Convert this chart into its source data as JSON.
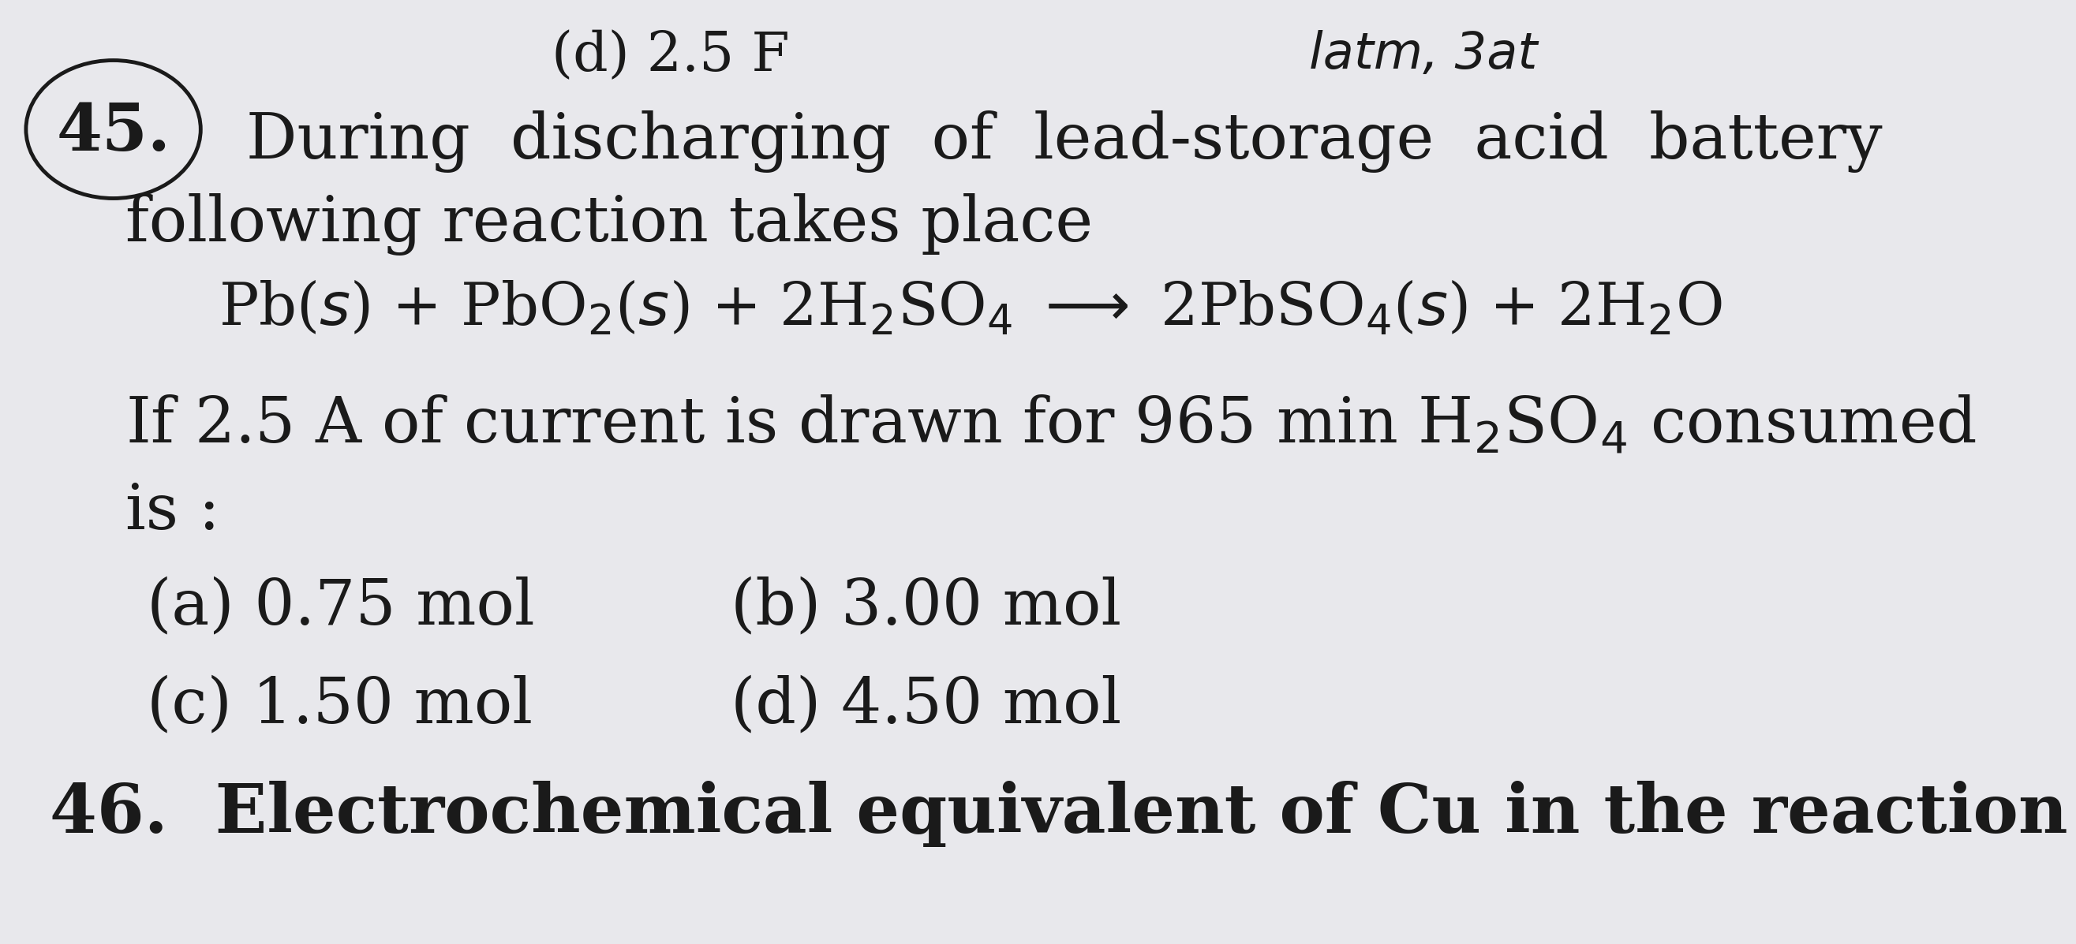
{
  "bg_color": "#e8e8ec",
  "text_color": "#1a1a1a",
  "fig_width": 25.82,
  "fig_height": 11.78,
  "circle_number": "45.",
  "top_partial": "(d) 2.5 F",
  "top_right": "latm, 3at",
  "line1": "During  discharging  of  lead-storage  acid  battery",
  "line2": "following reaction takes place",
  "line3_if": "If 2.5 A of current is drawn for 965 min H$_2$SO$_4$ consumed",
  "line4": "is :",
  "opt_a": "(a) 0.75 mol",
  "opt_b": "(b) 3.00 mol",
  "opt_c": "(c) 1.50 mol",
  "opt_d": "(d) 4.50 mol",
  "q46": "46.  Electrochemical equivalent of Cu in the reaction",
  "font_size_main": 58,
  "font_size_reaction": 54,
  "font_size_q46": 62,
  "font_size_top": 50,
  "font_size_circle": 60
}
